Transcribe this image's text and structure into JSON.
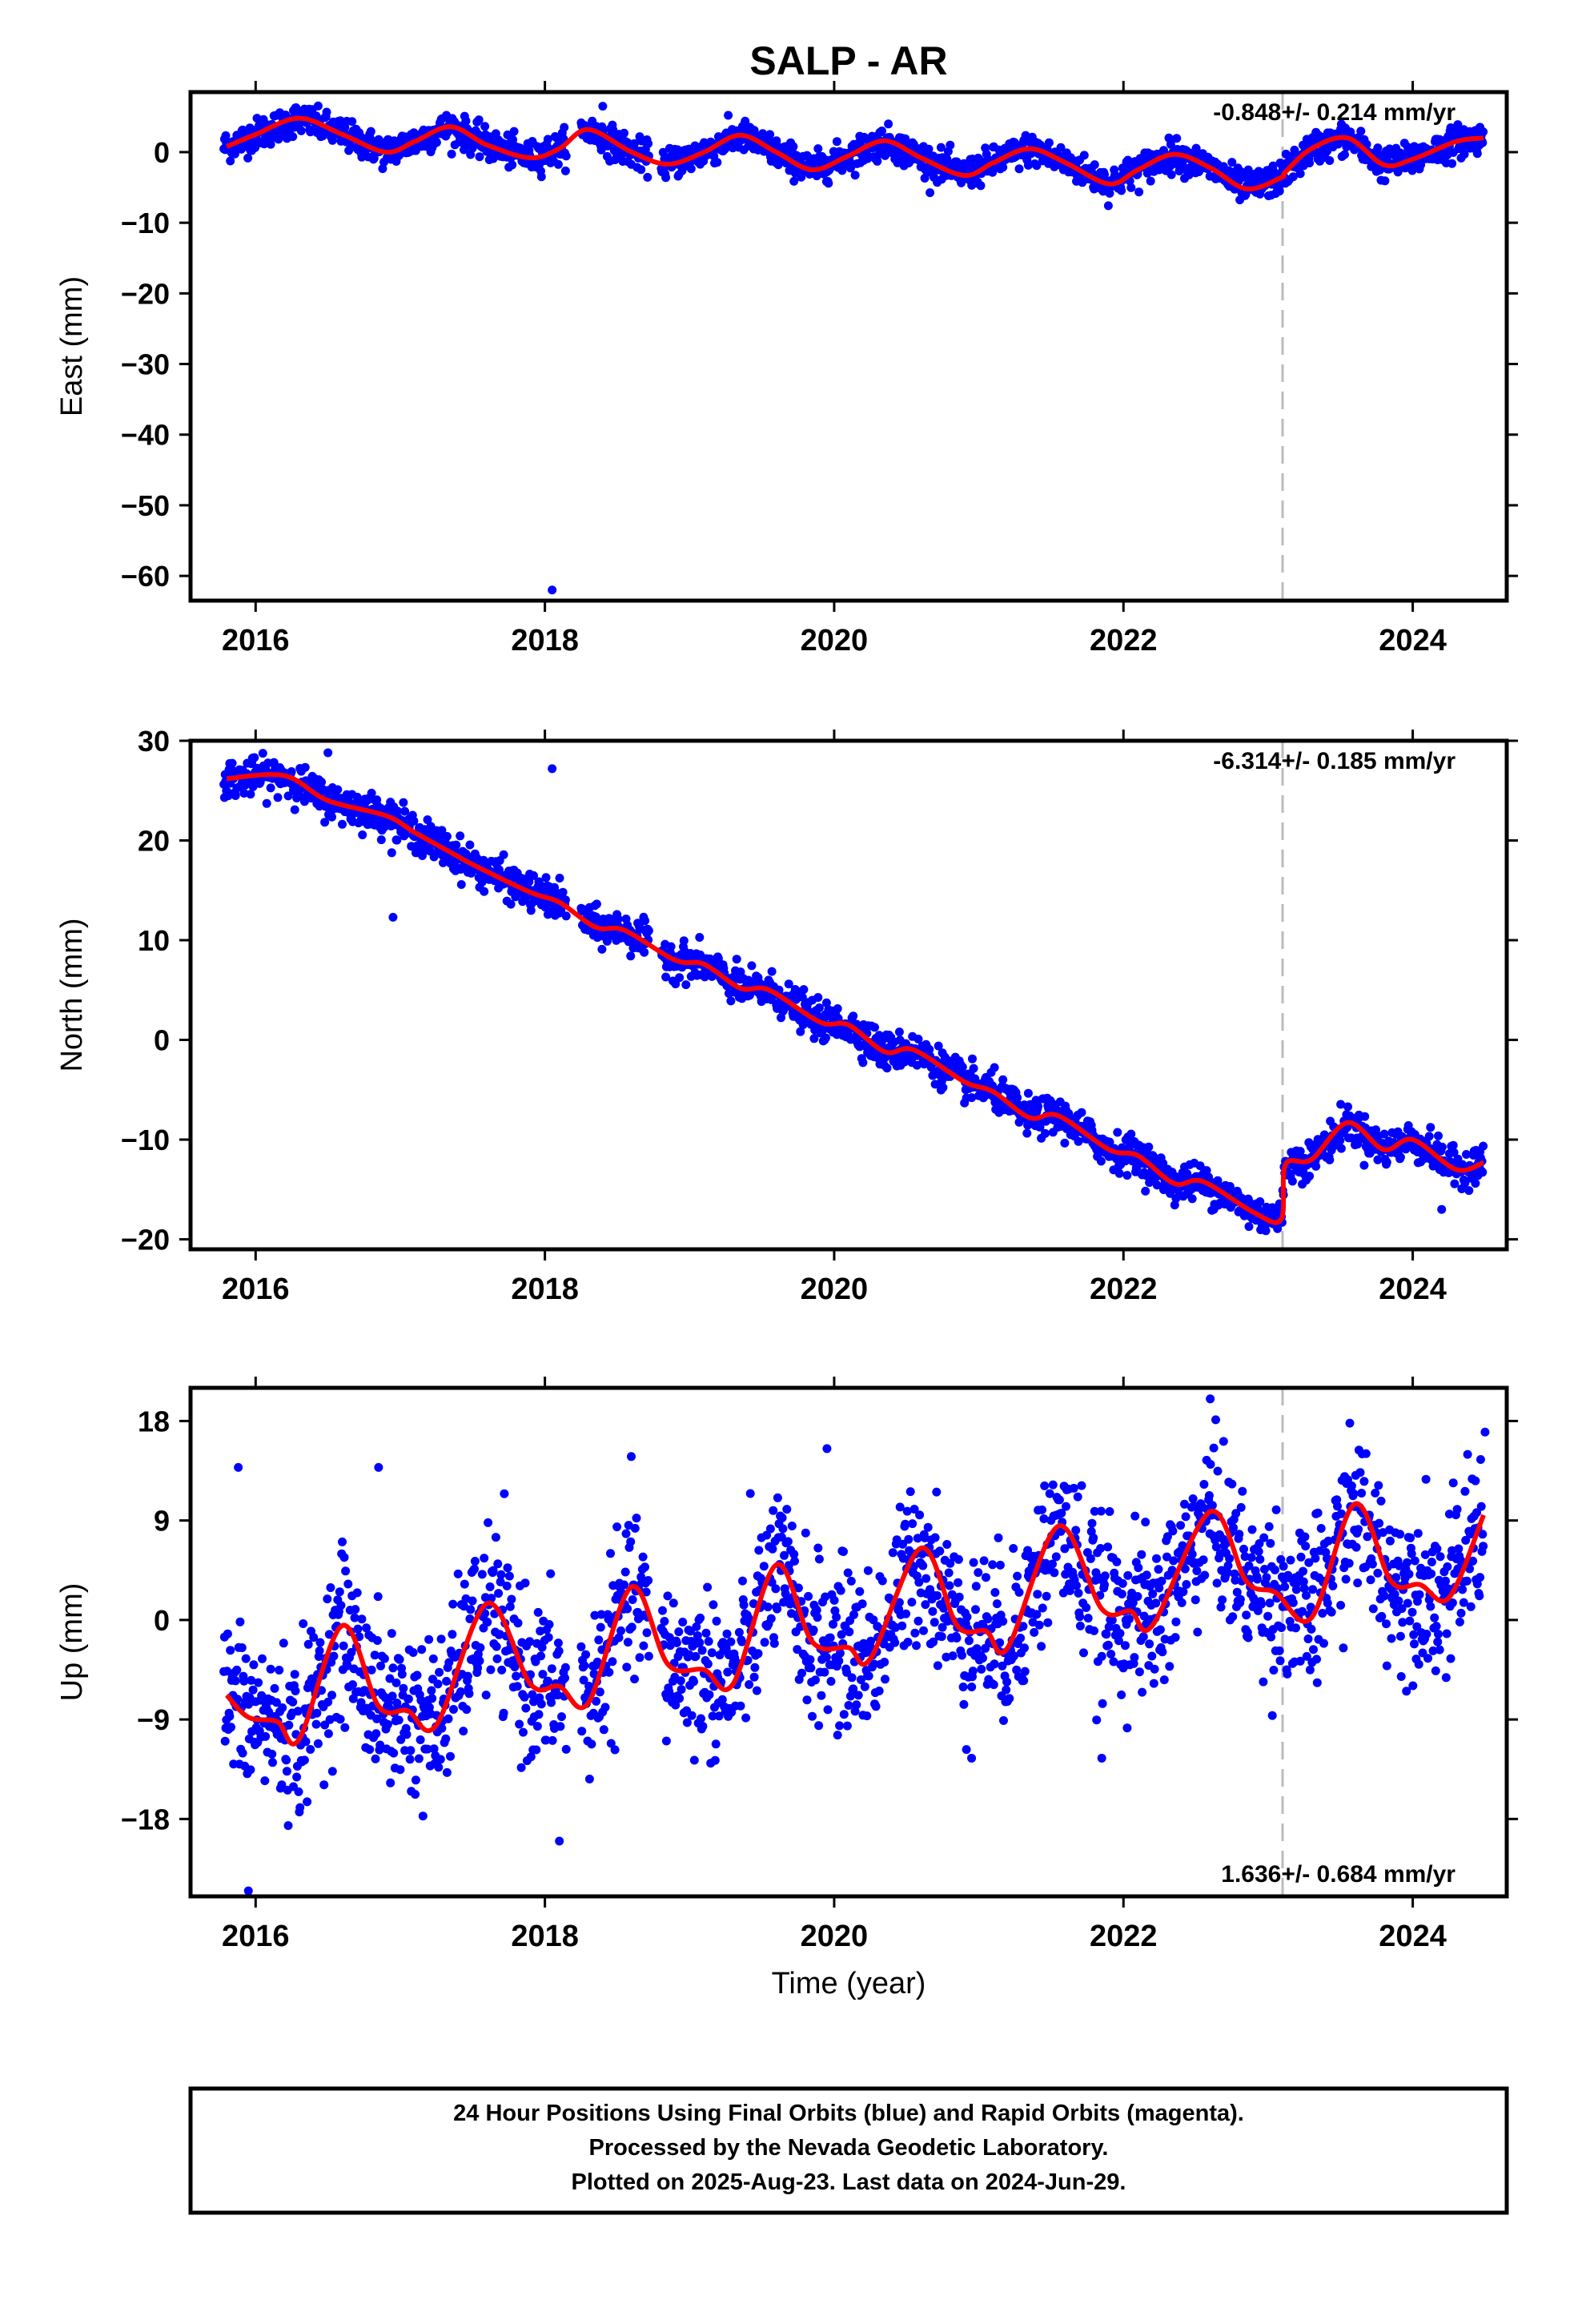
{
  "figure": {
    "title": "SALP - AR",
    "xlabel": "Time (year)",
    "footer_lines": [
      "24 Hour Positions Using Final Orbits (blue) and Rapid Orbits (magenta).",
      "Processed by the Nevada Geodetic Laboratory.",
      "Plotted on 2025-Aug-23. Last data on 2024-Jun-29."
    ]
  },
  "colors": {
    "points": "#0000ff",
    "fit": "#ff0000",
    "step_marker": "#bbbbbb",
    "frame": "#000000"
  },
  "chart_data": [
    {
      "type": "scatter",
      "name": "east",
      "ylabel": "East (mm)",
      "rate_text": "-0.848+/- 0.214 mm/yr",
      "xlim": [
        2015.55,
        2024.65
      ],
      "ylim": [
        -63.5,
        8.5
      ],
      "yticks": [
        0,
        -10,
        -20,
        -30,
        -40,
        -50,
        -60
      ],
      "xticks": [
        2016,
        2018,
        2020,
        2022,
        2024
      ],
      "step_marker_year": 2023.1,
      "data_range": [
        2015.78,
        2024.49
      ],
      "model": {
        "rate": -0.848,
        "rate_after_step": 0.25,
        "step": 2023.1,
        "offset": 4.0,
        "amp": 3.6,
        "period": 1.0,
        "phase_peak": 2016.35,
        "scatter_sd": 1.1
      },
      "fit_curve": {
        "x": [
          2015.8,
          2016.0,
          2016.3,
          2016.6,
          2016.9,
          2017.1,
          2017.35,
          2017.6,
          2017.9,
          2018.1,
          2018.3,
          2018.6,
          2018.85,
          2019.1,
          2019.35,
          2019.6,
          2019.85,
          2020.1,
          2020.35,
          2020.6,
          2020.9,
          2021.1,
          2021.35,
          2021.6,
          2021.9,
          2022.1,
          2022.35,
          2022.6,
          2022.85,
          2023.09,
          2023.12,
          2023.3,
          2023.55,
          2023.8,
          2024.0,
          2024.3,
          2024.49
        ],
        "y": [
          0.8,
          2.5,
          4.8,
          2.5,
          0.0,
          1.5,
          3.6,
          1.0,
          -0.8,
          0.5,
          3.2,
          0.0,
          -1.7,
          0.0,
          2.4,
          0.0,
          -2.5,
          -0.5,
          1.6,
          -0.8,
          -3.3,
          -1.5,
          0.5,
          -1.5,
          -4.5,
          -2.5,
          -0.3,
          -2.2,
          -5.2,
          -3.6,
          -2.8,
          0.5,
          2.0,
          -1.8,
          -1.0,
          1.5,
          2.0
        ]
      },
      "outliers": [
        {
          "x": 2018.05,
          "y": -62
        },
        {
          "x": 2018.4,
          "y": 6.5
        }
      ]
    },
    {
      "type": "scatter",
      "name": "north",
      "ylabel": "North (mm)",
      "rate_text": "-6.314+/- 0.185 mm/yr",
      "xlim": [
        2015.55,
        2024.65
      ],
      "ylim": [
        -21,
        30
      ],
      "yticks": [
        30,
        20,
        10,
        0,
        -10,
        -20
      ],
      "xticks": [
        2016,
        2018,
        2020,
        2022,
        2024
      ],
      "step_marker_year": 2023.1,
      "data_range": [
        2015.78,
        2024.49
      ],
      "model": {
        "rate": -6.314,
        "rate_after_step": -0.4,
        "step": 2023.1,
        "offset": 28.0,
        "amp": 1.3,
        "period": 1.0,
        "phase_peak": 2016.5,
        "scatter_sd": 0.9
      },
      "fit_curve": {
        "x": [
          2015.8,
          2016.2,
          2016.5,
          2016.9,
          2017.1,
          2017.35,
          2017.5,
          2017.9,
          2018.1,
          2018.35,
          2018.55,
          2018.9,
          2019.1,
          2019.35,
          2019.55,
          2019.9,
          2020.1,
          2020.35,
          2020.55,
          2020.9,
          2021.1,
          2021.35,
          2021.55,
          2021.9,
          2022.1,
          2022.35,
          2022.55,
          2022.9,
          2023.09,
          2023.12,
          2023.3,
          2023.55,
          2023.8,
          2024.0,
          2024.3,
          2024.49
        ],
        "y": [
          26.2,
          26.5,
          24.0,
          22.5,
          20.8,
          18.8,
          17.6,
          14.8,
          13.8,
          11.3,
          11.0,
          8.0,
          7.6,
          5.2,
          5.0,
          1.8,
          1.5,
          -1.2,
          -1.0,
          -4.2,
          -5.2,
          -7.8,
          -7.6,
          -11.0,
          -11.6,
          -14.4,
          -14.2,
          -17.3,
          -18.0,
          -12.5,
          -12.0,
          -8.3,
          -11.0,
          -10.0,
          -13.0,
          -12.3
        ]
      },
      "outliers": [
        {
          "x": 2018.05,
          "y": 27.2
        },
        {
          "x": 2016.95,
          "y": 12.3
        },
        {
          "x": 2016.5,
          "y": 28.8
        },
        {
          "x": 2024.2,
          "y": -17.0
        }
      ]
    },
    {
      "type": "scatter",
      "name": "up",
      "ylabel": "Up (mm)",
      "rate_text": "1.636+/- 0.684 mm/yr",
      "xlim": [
        2015.55,
        2024.65
      ],
      "ylim": [
        -25,
        21
      ],
      "yticks": [
        18,
        9,
        0,
        -9,
        -18
      ],
      "xticks": [
        2016,
        2018,
        2020,
        2022,
        2024
      ],
      "step_marker_year": 2023.1,
      "data_range": [
        2015.78,
        2024.49
      ],
      "model": {
        "rate": 1.636,
        "rate_after_step": 1.636,
        "step": 2023.1,
        "offset": -6.5,
        "amp": 6.0,
        "period": 1.0,
        "phase_peak": 2016.62,
        "scatter_sd": 3.6
      },
      "fit_curve": {
        "x": [
          2015.8,
          2015.95,
          2016.15,
          2016.3,
          2016.6,
          2016.85,
          2017.05,
          2017.25,
          2017.6,
          2017.9,
          2018.1,
          2018.3,
          2018.6,
          2018.85,
          2019.1,
          2019.3,
          2019.6,
          2019.85,
          2020.1,
          2020.25,
          2020.6,
          2020.85,
          2021.05,
          2021.2,
          2021.55,
          2021.85,
          2022.05,
          2022.2,
          2022.6,
          2022.85,
          2023.05,
          2023.3,
          2023.6,
          2023.85,
          2024.05,
          2024.25,
          2024.49
        ],
        "y": [
          -6.8,
          -8.8,
          -9.2,
          -10.8,
          -0.5,
          -7.8,
          -8.2,
          -9.5,
          1.5,
          -5.8,
          -6.0,
          -7.5,
          3.0,
          -4.0,
          -4.5,
          -5.8,
          5.0,
          -2.0,
          -2.5,
          -3.5,
          6.5,
          -0.5,
          -1.0,
          -2.5,
          8.5,
          1.0,
          0.8,
          -0.5,
          9.8,
          3.5,
          2.5,
          0.2,
          10.5,
          3.5,
          3.2,
          2.0,
          9.5
        ]
      },
      "outliers": [
        {
          "x": 2022.6,
          "y": 20.0
        },
        {
          "x": 2015.95,
          "y": -24.5
        },
        {
          "x": 2015.88,
          "y": 13.8
        },
        {
          "x": 2016.85,
          "y": 13.8
        },
        {
          "x": 2018.1,
          "y": -20.0
        },
        {
          "x": 2019.95,
          "y": 15.5
        },
        {
          "x": 2020.95,
          "y": -12.5
        },
        {
          "x": 2021.85,
          "y": -12.5
        },
        {
          "x": 2024.5,
          "y": 17.0
        }
      ]
    }
  ]
}
